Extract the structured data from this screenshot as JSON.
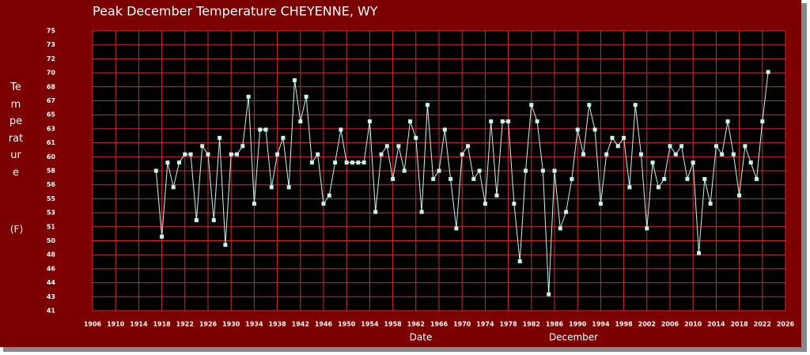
{
  "chart_data": {
    "type": "line",
    "title": "Peak December Temperature   CHEYENNE, WY",
    "ylabel": "Temperature",
    "y_unit": "(F)",
    "xlabel": "Date",
    "annotation": "December",
    "x": [
      1917,
      1918,
      1919,
      1920,
      1921,
      1922,
      1923,
      1924,
      1925,
      1926,
      1927,
      1928,
      1929,
      1930,
      1931,
      1932,
      1933,
      1934,
      1935,
      1936,
      1937,
      1938,
      1939,
      1940,
      1941,
      1942,
      1943,
      1944,
      1945,
      1946,
      1947,
      1948,
      1949,
      1950,
      1951,
      1952,
      1953,
      1954,
      1955,
      1956,
      1957,
      1958,
      1959,
      1960,
      1961,
      1962,
      1963,
      1964,
      1965,
      1966,
      1967,
      1968,
      1969,
      1970,
      1971,
      1972,
      1973,
      1974,
      1975,
      1976,
      1977,
      1978,
      1979,
      1980,
      1981,
      1982,
      1983,
      1984,
      1985,
      1986,
      1987,
      1988,
      1989,
      1990,
      1991,
      1992,
      1993,
      1994,
      1995,
      1996,
      1997,
      1998,
      1999,
      2000,
      2001,
      2002,
      2003,
      2004,
      2005,
      2006,
      2007,
      2008,
      2009,
      2010,
      2011,
      2012,
      2013,
      2014,
      2015,
      2016,
      2017,
      2018,
      2019,
      2020,
      2021,
      2022,
      2023
    ],
    "series": [
      {
        "name": "Peak December Temperature",
        "color": "#c8f4ee",
        "values": [
          58,
          50,
          59,
          56,
          59,
          60,
          60,
          52,
          61,
          60,
          52,
          62,
          49,
          60,
          60,
          61,
          67,
          54,
          63,
          63,
          56,
          60,
          62,
          56,
          69,
          64,
          67,
          59,
          60,
          54,
          55,
          59,
          63,
          59,
          59,
          59,
          59,
          64,
          53,
          60,
          61,
          57,
          61,
          58,
          64,
          62,
          53,
          66,
          57,
          58,
          63,
          57,
          51,
          60,
          61,
          57,
          58,
          54,
          64,
          55,
          64,
          64,
          54,
          47,
          58,
          66,
          64,
          58,
          43,
          58,
          51,
          53,
          57,
          63,
          60,
          66,
          63,
          54,
          60,
          62,
          61,
          62,
          56,
          66,
          60,
          51,
          59,
          56,
          57,
          61,
          60,
          61,
          57,
          59,
          48,
          57,
          54,
          61,
          60,
          64,
          60,
          55,
          61,
          59,
          57,
          64,
          70
        ]
      }
    ],
    "xlim": [
      1906,
      2026
    ],
    "xticks": [
      1906,
      1910,
      1914,
      1918,
      1922,
      1926,
      1930,
      1934,
      1938,
      1942,
      1946,
      1950,
      1954,
      1958,
      1962,
      1966,
      1970,
      1974,
      1978,
      1982,
      1986,
      1990,
      1994,
      1998,
      2002,
      2006,
      2010,
      2014,
      2018,
      2022,
      2026
    ],
    "ylim": [
      41,
      75
    ],
    "yticks": [
      41,
      {
        "value": 42.7,
        "label": "43"
      },
      {
        "value": 44.4,
        "label": "44"
      },
      {
        "value": 46.1,
        "label": "46"
      },
      {
        "value": 47.8,
        "label": "48"
      },
      {
        "value": 49.5,
        "label": "50"
      },
      {
        "value": 51.2,
        "label": "51"
      },
      {
        "value": 52.9,
        "label": "53"
      },
      {
        "value": 54.6,
        "label": "55"
      },
      {
        "value": 56.3,
        "label": "56"
      },
      58,
      {
        "value": 59.7,
        "label": "60"
      },
      {
        "value": 61.4,
        "label": "61"
      },
      {
        "value": 63.1,
        "label": "63"
      },
      {
        "value": 64.8,
        "label": "65"
      },
      {
        "value": 66.5,
        "label": "67"
      },
      {
        "value": 68.2,
        "label": "68"
      },
      {
        "value": 69.9,
        "label": "70"
      },
      {
        "value": 71.6,
        "label": "72"
      },
      {
        "value": 73.3,
        "label": "73"
      },
      75
    ],
    "grid": true
  }
}
